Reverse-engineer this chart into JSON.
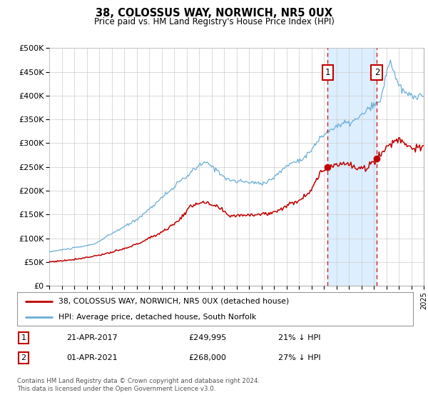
{
  "title": "38, COLOSSUS WAY, NORWICH, NR5 0UX",
  "subtitle": "Price paid vs. HM Land Registry's House Price Index (HPI)",
  "legend_line1": "38, COLOSSUS WAY, NORWICH, NR5 0UX (detached house)",
  "legend_line2": "HPI: Average price, detached house, South Norfolk",
  "sale1_date": "21-APR-2017",
  "sale1_price": "£249,995",
  "sale1_note": "21% ↓ HPI",
  "sale2_date": "01-APR-2021",
  "sale2_price": "£268,000",
  "sale2_note": "27% ↓ HPI",
  "footer": "Contains HM Land Registry data © Crown copyright and database right 2024.\nThis data is licensed under the Open Government Licence v3.0.",
  "hpi_color": "#6aaed6",
  "price_color": "#c00000",
  "marker_box_color": "#c00000",
  "shade_color": "#ddeeff",
  "sale1_year": 2017.31,
  "sale2_year": 2021.25,
  "sale1_price_val": 249995,
  "sale2_price_val": 268000,
  "ylim": [
    0,
    500000
  ],
  "xlim": [
    1995,
    2025
  ],
  "yticks": [
    0,
    50000,
    100000,
    150000,
    200000,
    250000,
    300000,
    350000,
    400000,
    450000,
    500000
  ],
  "ytick_labels": [
    "£0",
    "£50K",
    "£100K",
    "£150K",
    "£200K",
    "£250K",
    "£300K",
    "£350K",
    "£400K",
    "£450K",
    "£500K"
  ],
  "xticks": [
    1995,
    1996,
    1997,
    1998,
    1999,
    2000,
    2001,
    2002,
    2003,
    2004,
    2005,
    2006,
    2007,
    2008,
    2009,
    2010,
    2011,
    2012,
    2013,
    2014,
    2015,
    2016,
    2017,
    2018,
    2019,
    2020,
    2021,
    2022,
    2023,
    2024,
    2025
  ],
  "background_color": "#ffffff",
  "grid_color": "#cccccc",
  "hpi_anchors_y": [
    1995.0,
    1996.0,
    1997.0,
    1998.5,
    2000.0,
    2002.0,
    2004.0,
    2006.0,
    2007.5,
    2008.5,
    2009.5,
    2011.0,
    2012.0,
    2013.0,
    2014.0,
    2015.5,
    2017.0,
    2018.0,
    2019.5,
    2020.5,
    2021.5,
    2022.3,
    2023.0,
    2024.0,
    2025.0
  ],
  "hpi_anchors_v": [
    72000,
    76000,
    80000,
    88000,
    110000,
    140000,
    185000,
    230000,
    258000,
    242000,
    222000,
    218000,
    216000,
    228000,
    252000,
    272000,
    318000,
    335000,
    348000,
    370000,
    390000,
    470000,
    420000,
    400000,
    398000
  ],
  "price_anchors_y": [
    1995.0,
    1996.0,
    1997.5,
    1999.0,
    2001.0,
    2003.0,
    2005.0,
    2007.0,
    2008.5,
    2009.5,
    2011.0,
    2012.5,
    2014.0,
    2015.5,
    2017.31,
    2018.5,
    2020.0,
    2021.25,
    2022.0,
    2023.0,
    2024.0,
    2025.0
  ],
  "price_anchors_v": [
    51000,
    53000,
    58000,
    65000,
    78000,
    100000,
    130000,
    175000,
    165000,
    148000,
    150000,
    152000,
    168000,
    190000,
    249995,
    258000,
    245000,
    268000,
    290000,
    308000,
    292000,
    288000
  ]
}
